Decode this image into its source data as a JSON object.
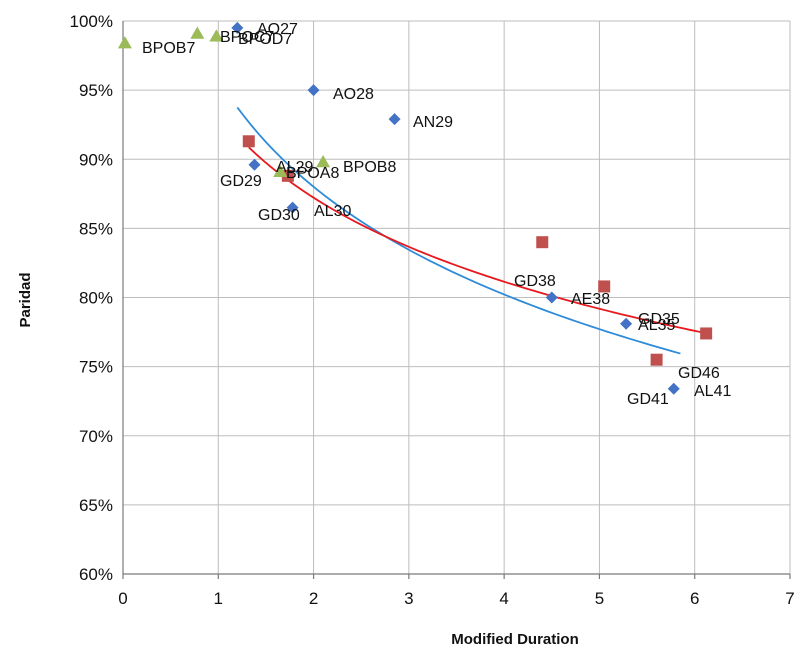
{
  "chart_data": {
    "type": "scatter",
    "title": "",
    "xlabel": "Modified Duration",
    "ylabel": "Paridad",
    "xlim": [
      0,
      7
    ],
    "ylim": [
      60,
      100
    ],
    "x_ticks": [
      0,
      1,
      2,
      3,
      4,
      5,
      6,
      7
    ],
    "y_ticks": [
      60,
      65,
      70,
      75,
      80,
      85,
      90,
      95,
      100
    ],
    "y_tick_labels": [
      "60%",
      "65%",
      "70%",
      "75%",
      "80%",
      "85%",
      "90%",
      "95%",
      "100%"
    ],
    "x_tick_labels": [
      "0",
      "1",
      "2",
      "3",
      "4",
      "5",
      "6",
      "7"
    ],
    "grid": true,
    "legend": "none",
    "series": [
      {
        "marker": "diamond",
        "color": "#4472C4",
        "points": [
          {
            "label": "AO27",
            "x": 1.2,
            "y": 99.5
          },
          {
            "label": "AO28",
            "x": 2.0,
            "y": 95.0
          },
          {
            "label": "AN29",
            "x": 2.85,
            "y": 92.9
          },
          {
            "label": "AL29",
            "x": 1.38,
            "y": 89.6
          },
          {
            "label": "AL30",
            "x": 1.78,
            "y": 86.5
          },
          {
            "label": "AE38",
            "x": 4.5,
            "y": 80.0
          },
          {
            "label": "AL35",
            "x": 5.28,
            "y": 78.1
          },
          {
            "label": "AL41",
            "x": 5.78,
            "y": 73.4
          }
        ]
      },
      {
        "marker": "square",
        "color": "#C0504D",
        "points": [
          {
            "label": "GD29",
            "x": 1.32,
            "y": 91.3
          },
          {
            "label": "GD30",
            "x": 1.73,
            "y": 88.8
          },
          {
            "label": "GD38",
            "x": 4.4,
            "y": 84.0
          },
          {
            "label": "GD35",
            "x": 5.05,
            "y": 80.8
          },
          {
            "label": "GD46",
            "x": 6.12,
            "y": 77.4
          },
          {
            "label": "GD41",
            "x": 5.6,
            "y": 75.5
          }
        ]
      },
      {
        "marker": "triangle",
        "color": "#9BBB59",
        "points": [
          {
            "label": "BPOB7",
            "x": 0.02,
            "y": 98.4
          },
          {
            "label": "BPOC7",
            "x": 0.78,
            "y": 99.1
          },
          {
            "label": "BPOD7",
            "x": 0.98,
            "y": 98.9
          },
          {
            "label": "BPOA8",
            "x": 1.65,
            "y": 89.1
          },
          {
            "label": "BPOB8",
            "x": 2.1,
            "y": 89.8
          }
        ]
      }
    ],
    "trendlines": [
      {
        "type": "logarithmic",
        "color": "#2E8BD9",
        "x_range": [
          1.2,
          5.85
        ],
        "a": 95.8,
        "b": -11.24
      },
      {
        "type": "logarithmic",
        "color": "#E8191E",
        "x_range": [
          1.32,
          6.12
        ],
        "a": 93.3,
        "b": -8.77
      }
    ],
    "point_label_text": {
      "AO27": "AO27",
      "AO28": "AO28",
      "AN29": "AN29",
      "AL29": "AL29",
      "AL30": "AL30",
      "AE38": "AE38",
      "AL35": "AL35",
      "AL41": "AL41",
      "GD29": "GD29",
      "GD30": "GD30",
      "GD38": "GD38",
      "GD35": "GD35",
      "GD46": "GD46",
      "GD41": "GD41",
      "BPOB7": "BPOB7",
      "BPOC7": "BPOC7",
      "BPOD7": "BPOD7",
      "BPOA8": "BPOA8",
      "BPOB8": "BPOB8"
    }
  }
}
